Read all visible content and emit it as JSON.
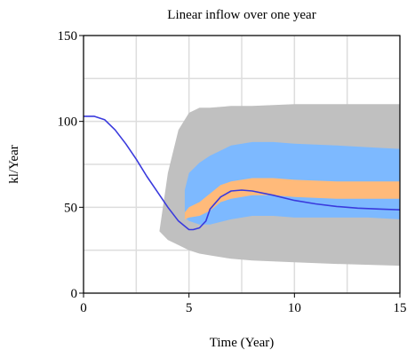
{
  "chart_data": {
    "type": "area",
    "title": "Linear inflow over one year",
    "xlabel": "Time (Year)",
    "ylabel": "kl/Year",
    "xlim": [
      0,
      15
    ],
    "ylim": [
      0,
      150
    ],
    "x_ticks": [
      0,
      5,
      10,
      15
    ],
    "x_tick_labels": [
      "0",
      "5",
      "10",
      "15"
    ],
    "y_ticks": [
      0,
      50,
      100,
      150
    ],
    "y_tick_labels": [
      "0",
      "50",
      "100",
      "150"
    ],
    "grid": true,
    "colors": {
      "outer_band": "#c0c0c0",
      "middle_band": "#7db9ff",
      "inner_band": "#ffba7a",
      "line": "#3a3add",
      "grid": "#dddddd",
      "frame": "#000000"
    },
    "bands": [
      {
        "level": "outer",
        "x": [
          3.6,
          4.0,
          4.5,
          5.0,
          5.5,
          6.0,
          7.0,
          8.0,
          10.0,
          12.0,
          15.0
        ],
        "upper": [
          36,
          70,
          95,
          105,
          108,
          108,
          109,
          109,
          110,
          110,
          110
        ],
        "lower": [
          36,
          31,
          28,
          25,
          23,
          22,
          20,
          19,
          18,
          17,
          16
        ]
      },
      {
        "level": "middle",
        "x": [
          4.8,
          5.0,
          5.5,
          6.0,
          7.0,
          8.0,
          9.0,
          10.0,
          12.0,
          13.5,
          15.0
        ],
        "upper": [
          60,
          70,
          76,
          80,
          86,
          88,
          88,
          87,
          86,
          85,
          84
        ],
        "lower": [
          44,
          42,
          40,
          40,
          43,
          45,
          45,
          44,
          44,
          44,
          43
        ]
      },
      {
        "level": "inner",
        "x": [
          4.8,
          5.0,
          5.5,
          6.0,
          6.5,
          7.0,
          8.0,
          9.0,
          10.0,
          12.0,
          15.0
        ],
        "upper": [
          47,
          50,
          53,
          58,
          63,
          65,
          67,
          67,
          66,
          65,
          65
        ],
        "lower": [
          43,
          44,
          45,
          48,
          53,
          55,
          57,
          57,
          56,
          55,
          55
        ]
      }
    ],
    "series": [
      {
        "x": [
          0,
          0.5,
          1.0,
          1.5,
          2.0,
          2.5,
          3.0,
          3.5,
          4.0,
          4.5,
          5.0,
          5.2,
          5.5,
          5.8,
          6.0,
          6.5,
          7.0,
          7.5,
          8.0,
          9.0,
          10.0,
          11.0,
          12.0,
          13.0,
          14.0,
          15.0
        ],
        "values": [
          103,
          103,
          101,
          95,
          87,
          78,
          68,
          59,
          50,
          42,
          37,
          37,
          38,
          42,
          49,
          56,
          59.5,
          60,
          59.5,
          57,
          54,
          52,
          50.5,
          49.5,
          49,
          48.5
        ]
      }
    ]
  }
}
